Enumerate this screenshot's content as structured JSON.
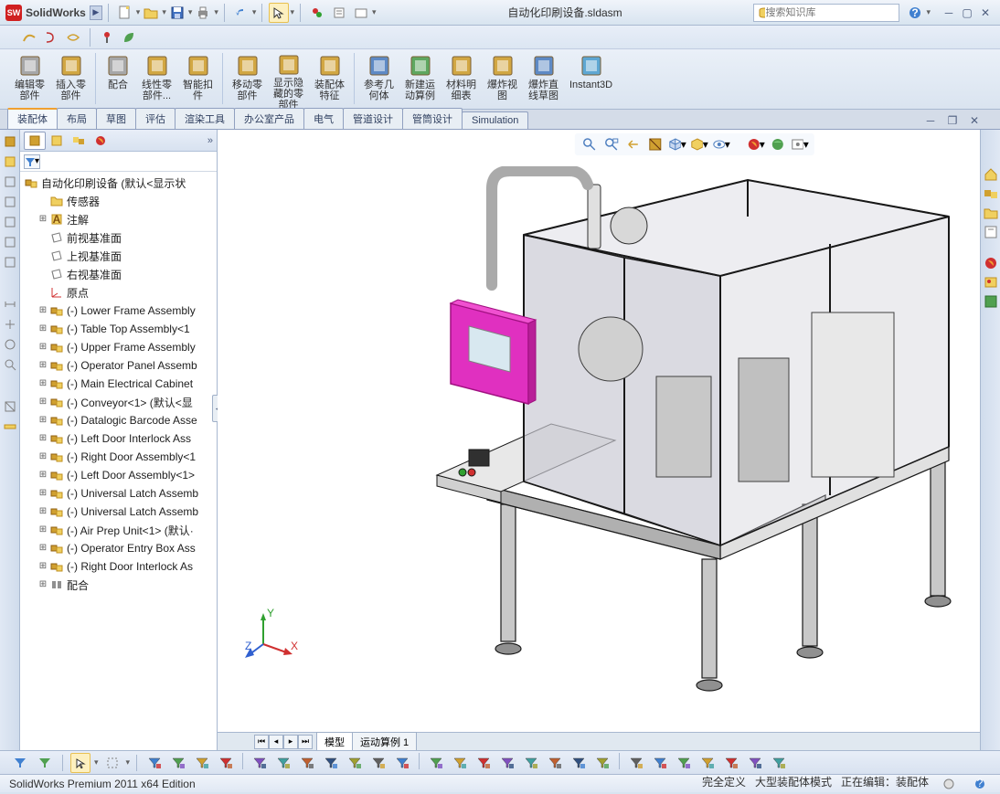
{
  "app_title": "SolidWorks",
  "doc_title": "自动化印刷设备.sldasm",
  "search_placeholder": "搜索知识库",
  "ribbon_tools_icons": [
    "curve1",
    "curve2",
    "curve3",
    "sep",
    "pin",
    "leaf"
  ],
  "ribbon": [
    {
      "label": "编辑零\n部件",
      "color": "#a0a0a0"
    },
    {
      "label": "插入零\n部件",
      "color": "#d0a030"
    },
    {
      "label": "配合",
      "color": "#a0a0a0"
    },
    {
      "label": "线性零\n部件...",
      "color": "#d0a030"
    },
    {
      "label": "智能扣\n件",
      "color": "#d0a030"
    },
    {
      "label": "移动零\n部件",
      "color": "#d0a030"
    },
    {
      "label": "显示隐\n藏的零\n部件",
      "color": "#d0a030"
    },
    {
      "label": "装配体\n特征",
      "color": "#d0a030"
    },
    {
      "label": "参考几\n何体",
      "color": "#5080c0"
    },
    {
      "label": "新建运\n动算例",
      "color": "#50a050"
    },
    {
      "label": "材料明\n细表",
      "color": "#d0a030"
    },
    {
      "label": "爆炸视\n图",
      "color": "#d0a030"
    },
    {
      "label": "爆炸直\n线草图",
      "color": "#5080c0"
    },
    {
      "label": "Instant3D",
      "color": "#50a0d0"
    }
  ],
  "tabs": [
    "装配体",
    "布局",
    "草图",
    "评估",
    "渲染工具",
    "办公室产品",
    "电气",
    "管道设计",
    "管筒设计",
    "Simulation"
  ],
  "active_tab": 0,
  "tree": {
    "root": "自动化印刷设备  (默认<显示状",
    "items": [
      {
        "icon": "folder",
        "label": "传感器",
        "indent": 1,
        "exp": ""
      },
      {
        "icon": "ann",
        "label": "注解",
        "indent": 1,
        "exp": "+"
      },
      {
        "icon": "plane",
        "label": "前视基准面",
        "indent": 1,
        "exp": ""
      },
      {
        "icon": "plane",
        "label": "上视基准面",
        "indent": 1,
        "exp": ""
      },
      {
        "icon": "plane",
        "label": "右视基准面",
        "indent": 1,
        "exp": ""
      },
      {
        "icon": "origin",
        "label": "原点",
        "indent": 1,
        "exp": ""
      },
      {
        "icon": "asm",
        "label": "(-) Lower Frame Assembly",
        "indent": 1,
        "exp": "+"
      },
      {
        "icon": "asm",
        "label": "(-) Table Top Assembly<1",
        "indent": 1,
        "exp": "+"
      },
      {
        "icon": "asm",
        "label": "(-) Upper Frame Assembly",
        "indent": 1,
        "exp": "+"
      },
      {
        "icon": "asm",
        "label": "(-) Operator Panel Assemb",
        "indent": 1,
        "exp": "+"
      },
      {
        "icon": "asm",
        "label": "(-) Main Electrical Cabinet",
        "indent": 1,
        "exp": "+"
      },
      {
        "icon": "asm",
        "label": "(-) Conveyor<1> (默认<显",
        "indent": 1,
        "exp": "+"
      },
      {
        "icon": "asm",
        "label": "(-) Datalogic Barcode Asse",
        "indent": 1,
        "exp": "+"
      },
      {
        "icon": "asm",
        "label": "(-) Left Door Interlock Ass",
        "indent": 1,
        "exp": "+"
      },
      {
        "icon": "asm",
        "label": "(-) Right Door Assembly<1",
        "indent": 1,
        "exp": "+"
      },
      {
        "icon": "asm",
        "label": "(-) Left Door Assembly<1>",
        "indent": 1,
        "exp": "+"
      },
      {
        "icon": "asm",
        "label": "(-) Universal Latch Assemb",
        "indent": 1,
        "exp": "+"
      },
      {
        "icon": "asm",
        "label": "(-) Universal Latch Assemb",
        "indent": 1,
        "exp": "+"
      },
      {
        "icon": "asm",
        "label": "(-) Air Prep Unit<1> (默认·",
        "indent": 1,
        "exp": "+"
      },
      {
        "icon": "asm",
        "label": "(-) Operator Entry Box Ass",
        "indent": 1,
        "exp": "+"
      },
      {
        "icon": "asm",
        "label": "(-) Right Door Interlock As",
        "indent": 1,
        "exp": "+"
      },
      {
        "icon": "mates",
        "label": "配合",
        "indent": 1,
        "exp": "+"
      }
    ]
  },
  "view_tabs": [
    "模型",
    "运动算例 1"
  ],
  "active_view_tab": 0,
  "status_left": "SolidWorks Premium 2011 x64 Edition",
  "status_right": [
    "完全定义",
    "大型装配体模式",
    "正在编辑：装配体"
  ],
  "colors": {
    "accent": "#d0a030",
    "magenta": "#e030c0",
    "frame": "#202020",
    "panel": "#b8b8b8"
  },
  "triad": {
    "x": "X",
    "y": "Y",
    "z": "Z",
    "x_color": "#d03030",
    "y_color": "#30a030",
    "z_color": "#3060d0"
  }
}
